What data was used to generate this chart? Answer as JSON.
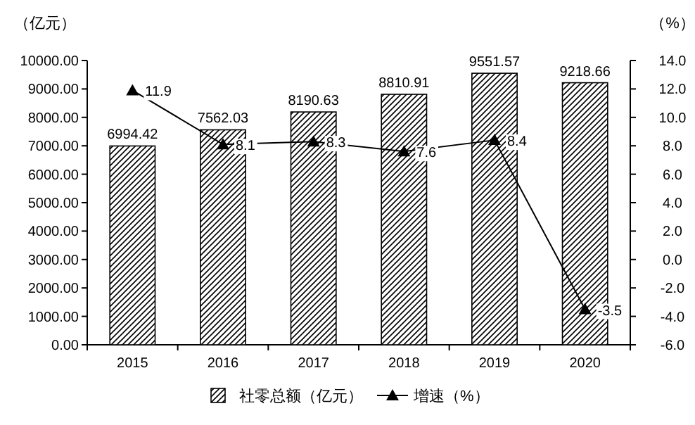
{
  "chart_data": {
    "type": "bar",
    "categories": [
      "2015",
      "2016",
      "2017",
      "2018",
      "2019",
      "2020"
    ],
    "ylabel": "（亿元）",
    "y2label": "（%）",
    "series": [
      {
        "name": "社零总额（亿元）",
        "color": "#000000",
        "values": [
          6994.42,
          7562.03,
          8190.63,
          8810.91,
          9551.57,
          9218.66
        ]
      },
      {
        "name": "增速（%）",
        "type": "line",
        "axis": "y2",
        "color": "#000000",
        "values": [
          11.9,
          8.1,
          8.3,
          7.6,
          8.4,
          -3.5
        ]
      }
    ],
    "ylim": [
      0,
      10000
    ],
    "yticks": [
      {
        "value": 0,
        "label": "0.00"
      },
      {
        "value": 1000,
        "label": "1000.00"
      },
      {
        "value": 2000,
        "label": "2000.00"
      },
      {
        "value": 3000,
        "label": "3000.00"
      },
      {
        "value": 4000,
        "label": "4000.00"
      },
      {
        "value": 5000,
        "label": "5000.00"
      },
      {
        "value": 6000,
        "label": "6000.00"
      },
      {
        "value": 7000,
        "label": "7000.00"
      },
      {
        "value": 8000,
        "label": "8000.00"
      },
      {
        "value": 9000,
        "label": "9000.00"
      },
      {
        "value": 10000,
        "label": "10000.00"
      }
    ],
    "y2lim": [
      -6,
      14
    ],
    "y2ticks": [
      {
        "value": -6,
        "label": "-6.0"
      },
      {
        "value": -4,
        "label": "-4.0"
      },
      {
        "value": -2,
        "label": "-2.0"
      },
      {
        "value": 0,
        "label": "0.0"
      },
      {
        "value": 2,
        "label": "2.0"
      },
      {
        "value": 4,
        "label": "4.0"
      },
      {
        "value": 6,
        "label": "6.0"
      },
      {
        "value": 8,
        "label": "8.0"
      },
      {
        "value": 10,
        "label": "10.0"
      },
      {
        "value": 12,
        "label": "12.0"
      },
      {
        "value": 14,
        "label": "14.0"
      }
    ],
    "data_labels": true,
    "marker": "triangle",
    "line_style": "solid",
    "legend": "bottom",
    "grid": false
  }
}
